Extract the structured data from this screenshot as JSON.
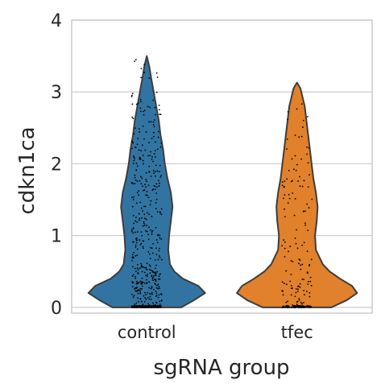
{
  "chart_data": {
    "type": "violin",
    "xlabel": "sgRNA group",
    "ylabel": "cdkn1ca",
    "categories": [
      "control",
      "tfec"
    ],
    "ylim": [
      -0.08,
      4.0
    ],
    "yticks": [
      0,
      1,
      2,
      3,
      4
    ],
    "grid": true,
    "series": [
      {
        "category": "control",
        "color": "#3274a1",
        "max": 3.5,
        "density": [
          [
            0.0,
            0.4
          ],
          [
            0.1,
            0.55
          ],
          [
            0.2,
            0.68
          ],
          [
            0.3,
            0.6
          ],
          [
            0.4,
            0.42
          ],
          [
            0.5,
            0.32
          ],
          [
            0.6,
            0.27
          ],
          [
            0.8,
            0.25
          ],
          [
            1.0,
            0.26
          ],
          [
            1.2,
            0.28
          ],
          [
            1.4,
            0.3
          ],
          [
            1.6,
            0.28
          ],
          [
            1.8,
            0.24
          ],
          [
            2.0,
            0.21
          ],
          [
            2.2,
            0.19
          ],
          [
            2.4,
            0.16
          ],
          [
            2.6,
            0.14
          ],
          [
            2.8,
            0.11
          ],
          [
            3.0,
            0.08
          ],
          [
            3.2,
            0.05
          ],
          [
            3.35,
            0.03
          ],
          [
            3.5,
            0.0
          ]
        ],
        "points_near_zero": 160,
        "points_above_zero": 420
      },
      {
        "category": "tfec",
        "color": "#e1812c",
        "max": 3.13,
        "density": [
          [
            0.0,
            0.4
          ],
          [
            0.1,
            0.58
          ],
          [
            0.2,
            0.7
          ],
          [
            0.3,
            0.64
          ],
          [
            0.4,
            0.5
          ],
          [
            0.5,
            0.38
          ],
          [
            0.6,
            0.3
          ],
          [
            0.8,
            0.22
          ],
          [
            1.0,
            0.21
          ],
          [
            1.2,
            0.23
          ],
          [
            1.4,
            0.24
          ],
          [
            1.6,
            0.22
          ],
          [
            1.8,
            0.19
          ],
          [
            2.0,
            0.17
          ],
          [
            2.2,
            0.15
          ],
          [
            2.4,
            0.13
          ],
          [
            2.6,
            0.11
          ],
          [
            2.8,
            0.09
          ],
          [
            2.95,
            0.06
          ],
          [
            3.05,
            0.04
          ],
          [
            3.13,
            0.0
          ]
        ],
        "points_near_zero": 60,
        "points_above_zero": 130
      }
    ]
  }
}
